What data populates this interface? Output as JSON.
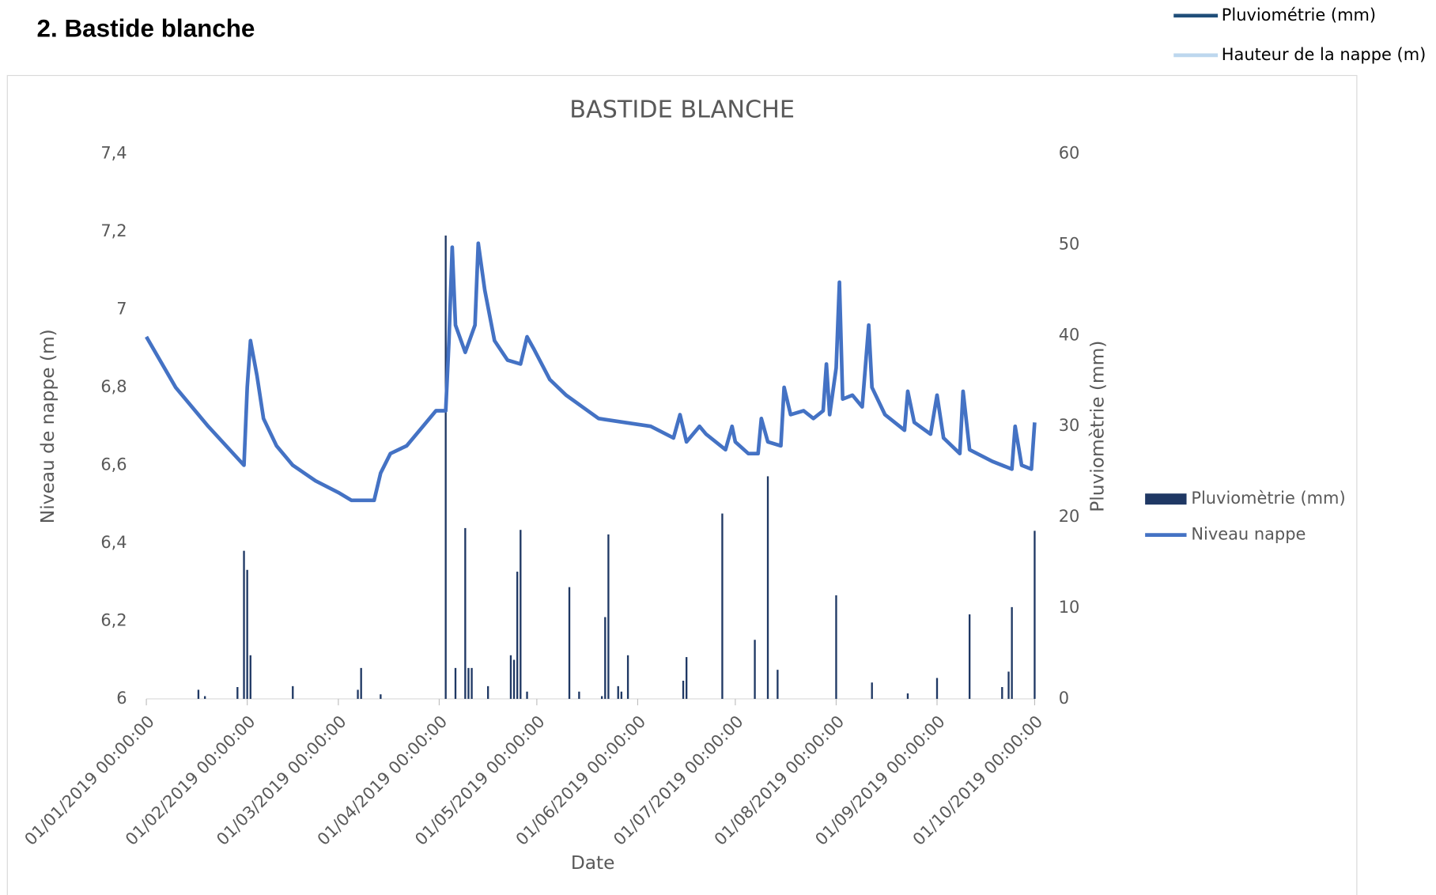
{
  "heading": "2.  Bastide blanche",
  "external_legend": [
    {
      "name": "Pluviométrie (mm)",
      "color": "#1f4e79"
    },
    {
      "name": "Hauteur de la nappe (m)",
      "color": "#bdd7ee"
    }
  ],
  "chart_data": {
    "type": "bar+line",
    "title": "BASTIDE BLANCHE",
    "xlabel": "Date",
    "ylabel": "Niveau de nappe (m)",
    "y2label": "Pluviomètrie (mm)",
    "xlim": [
      "01/01/2019",
      "01/10/2019"
    ],
    "xticks": [
      {
        "value": "01/01/2019",
        "label": "01/01/2019 00:00:00"
      },
      {
        "value": "01/02/2019",
        "label": "01/02/2019 00:00:00"
      },
      {
        "value": "01/03/2019",
        "label": "01/03/2019 00:00:00"
      },
      {
        "value": "01/04/2019",
        "label": "01/04/2019 00:00:00"
      },
      {
        "value": "01/05/2019",
        "label": "01/05/2019 00:00:00"
      },
      {
        "value": "01/06/2019",
        "label": "01/06/2019 00:00:00"
      },
      {
        "value": "01/07/2019",
        "label": "01/07/2019 00:00:00"
      },
      {
        "value": "01/08/2019",
        "label": "01/08/2019 00:00:00"
      },
      {
        "value": "01/09/2019",
        "label": "01/09/2019 00:00:00"
      },
      {
        "value": "01/10/2019",
        "label": "01/10/2019 00:00:00"
      }
    ],
    "ylim": [
      6,
      7.4
    ],
    "yticks": [
      6,
      {
        "value": 6.2,
        "label": "6,2"
      },
      {
        "value": 6.4,
        "label": "6,4"
      },
      {
        "value": 6.6,
        "label": "6,6"
      },
      {
        "value": 6.8,
        "label": "6,8"
      },
      7,
      {
        "value": 7.2,
        "label": "7,2"
      },
      {
        "value": 7.4,
        "label": "7,4"
      }
    ],
    "y2lim": [
      0,
      60
    ],
    "y2ticks": [
      0,
      10,
      20,
      30,
      40,
      50,
      60
    ],
    "series": [
      {
        "name": "Pluviomètrie (mm)",
        "type": "bar",
        "axis": "y2",
        "color": "#1f3864",
        "x": [
          "17/01/2019",
          "19/01/2019",
          "29/01/2019",
          "31/01/2019",
          "01/02/2019",
          "02/02/2019",
          "15/02/2019",
          "07/03/2019",
          "08/03/2019",
          "14/03/2019",
          "03/04/2019",
          "06/04/2019",
          "09/04/2019",
          "10/04/2019",
          "11/04/2019",
          "16/04/2019",
          "23/04/2019",
          "24/04/2019",
          "25/04/2019",
          "26/04/2019",
          "28/04/2019",
          "11/05/2019",
          "14/05/2019",
          "21/05/2019",
          "22/05/2019",
          "23/05/2019",
          "26/05/2019",
          "27/05/2019",
          "29/05/2019",
          "15/06/2019",
          "16/06/2019",
          "27/06/2019",
          "07/07/2019",
          "11/07/2019",
          "14/07/2019",
          "01/08/2019",
          "12/08/2019",
          "23/08/2019",
          "01/09/2019",
          "11/09/2019",
          "21/09/2019",
          "23/09/2019",
          "24/09/2019",
          "01/10/2019"
        ],
        "values": [
          1,
          0.3,
          1.3,
          16.3,
          14.2,
          4.8,
          1.4,
          1,
          3.4,
          0.5,
          51,
          3.4,
          18.8,
          3.4,
          3.4,
          1.4,
          4.8,
          4.3,
          14,
          18.6,
          0.8,
          12.3,
          0.8,
          0.3,
          9,
          18.1,
          1.4,
          0.8,
          4.8,
          2,
          4.6,
          20.4,
          6.5,
          24.5,
          3.2,
          11.4,
          1.8,
          0.6,
          2.3,
          9.3,
          1.3,
          3,
          10.1,
          18.5
        ]
      },
      {
        "name": "Niveau nappe",
        "type": "line",
        "axis": "y",
        "color": "#4472c4",
        "x": [
          "01/01/2019",
          "10/01/2019",
          "20/01/2019",
          "31/01/2019",
          "01/02/2019",
          "02/02/2019",
          "04/02/2019",
          "06/02/2019",
          "10/02/2019",
          "15/02/2019",
          "22/02/2019",
          "01/03/2019",
          "05/03/2019",
          "12/03/2019",
          "14/03/2019",
          "17/03/2019",
          "22/03/2019",
          "27/03/2019",
          "31/03/2019",
          "03/04/2019",
          "04/04/2019",
          "05/04/2019",
          "06/04/2019",
          "09/04/2019",
          "12/04/2019",
          "13/04/2019",
          "15/04/2019",
          "18/04/2019",
          "22/04/2019",
          "26/04/2019",
          "28/04/2019",
          "30/04/2019",
          "05/05/2019",
          "10/05/2019",
          "15/05/2019",
          "20/05/2019",
          "28/05/2019",
          "05/06/2019",
          "12/06/2019",
          "14/06/2019",
          "16/06/2019",
          "20/06/2019",
          "22/06/2019",
          "28/06/2019",
          "30/06/2019",
          "01/07/2019",
          "05/07/2019",
          "08/07/2019",
          "09/07/2019",
          "11/07/2019",
          "15/07/2019",
          "16/07/2019",
          "18/07/2019",
          "22/07/2019",
          "25/07/2019",
          "28/07/2019",
          "29/07/2019",
          "30/07/2019",
          "01/08/2019",
          "02/08/2019",
          "03/08/2019",
          "06/08/2019",
          "09/08/2019",
          "11/08/2019",
          "12/08/2019",
          "16/08/2019",
          "22/08/2019",
          "23/08/2019",
          "25/08/2019",
          "30/08/2019",
          "01/09/2019",
          "03/09/2019",
          "08/09/2019",
          "09/09/2019",
          "11/09/2019",
          "18/09/2019",
          "24/09/2019",
          "25/09/2019",
          "27/09/2019",
          "30/09/2019",
          "01/10/2019"
        ],
        "values": [
          6.93,
          6.8,
          6.7,
          6.6,
          6.8,
          6.92,
          6.83,
          6.72,
          6.65,
          6.6,
          6.56,
          6.53,
          6.51,
          6.51,
          6.58,
          6.63,
          6.65,
          6.7,
          6.74,
          6.74,
          6.92,
          7.16,
          6.96,
          6.89,
          6.96,
          7.17,
          7.05,
          6.92,
          6.87,
          6.86,
          6.93,
          6.9,
          6.82,
          6.78,
          6.75,
          6.72,
          6.71,
          6.7,
          6.67,
          6.73,
          6.66,
          6.7,
          6.68,
          6.64,
          6.7,
          6.66,
          6.63,
          6.63,
          6.72,
          6.66,
          6.65,
          6.8,
          6.73,
          6.74,
          6.72,
          6.74,
          6.86,
          6.73,
          6.85,
          7.07,
          6.77,
          6.78,
          6.75,
          6.96,
          6.8,
          6.73,
          6.69,
          6.79,
          6.71,
          6.68,
          6.78,
          6.67,
          6.63,
          6.79,
          6.64,
          6.61,
          6.59,
          6.7,
          6.6,
          6.59,
          6.71
        ]
      }
    ],
    "legend": "right"
  }
}
